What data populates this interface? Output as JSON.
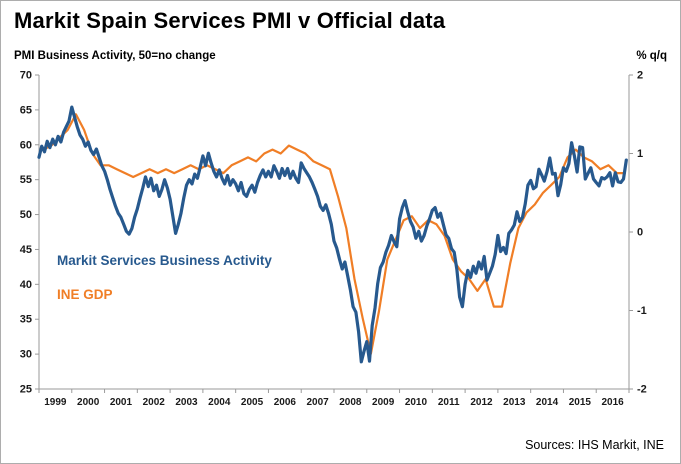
{
  "title": "Markit Spain Services PMI v Official data",
  "subtitle_left": "PMI Business Activity, 50=no change",
  "subtitle_right": "% q/q",
  "source": "Sources: IHS Markit, INE",
  "colors": {
    "pmi": "#27598E",
    "gdp": "#F07E26",
    "axis": "#9a9a9a",
    "text": "#000000"
  },
  "chart_data": {
    "type": "line",
    "title": "Markit Spain Services PMI v Official data",
    "xlabel": "",
    "ylabel_left": "PMI Business Activity, 50=no change",
    "ylabel_right": "% q/q",
    "grid": false,
    "legend_position": "inside-left",
    "left_axis": {
      "min": 25,
      "max": 70,
      "ticks": [
        25,
        30,
        35,
        40,
        45,
        50,
        55,
        60,
        65,
        70
      ]
    },
    "right_axis": {
      "min": -2,
      "max": 2,
      "ticks": [
        -2,
        -1,
        0,
        1,
        2
      ]
    },
    "x_axis": {
      "min": 1999,
      "max": 2017,
      "tick_labels": [
        "1999",
        "2000",
        "2001",
        "2002",
        "2003",
        "2004",
        "2005",
        "2006",
        "2007",
        "2008",
        "2009",
        "2010",
        "2011",
        "2012",
        "2013",
        "2014",
        "2015",
        "2016"
      ]
    },
    "series": [
      {
        "name": "Markit Services Business Activity",
        "axis": "left",
        "color": "#27598E",
        "width": 3.2,
        "freq": "monthly",
        "start": 1999.0,
        "step": 0.0833333,
        "values": [
          58.2,
          59.8,
          59.0,
          60.5,
          59.6,
          60.8,
          60.0,
          61.2,
          60.4,
          61.8,
          62.6,
          63.4,
          65.4,
          64.0,
          62.6,
          61.4,
          60.8,
          59.8,
          60.4,
          59.2,
          58.6,
          59.4,
          58.2,
          57.0,
          56.2,
          55.0,
          53.6,
          52.4,
          51.2,
          50.2,
          49.6,
          48.6,
          47.6,
          47.2,
          48.0,
          49.6,
          50.8,
          52.4,
          53.8,
          55.4,
          54.0,
          55.2,
          53.4,
          54.2,
          52.6,
          53.6,
          55.0,
          53.8,
          52.2,
          49.8,
          47.3,
          48.6,
          50.2,
          52.4,
          54.2,
          55.0,
          54.4,
          55.8,
          55.2,
          56.8,
          58.4,
          57.0,
          58.8,
          57.4,
          56.2,
          55.4,
          56.4,
          55.2,
          54.4,
          55.6,
          54.2,
          55.0,
          54.4,
          53.4,
          54.6,
          53.0,
          52.6,
          53.6,
          54.2,
          53.2,
          54.6,
          55.6,
          56.4,
          55.4,
          56.2,
          55.4,
          57.0,
          56.2,
          55.2,
          56.6,
          55.6,
          56.6,
          55.2,
          56.2,
          55.2,
          54.6,
          57.4,
          56.6,
          56.0,
          55.4,
          54.6,
          53.6,
          52.6,
          51.2,
          50.6,
          51.4,
          50.2,
          48.6,
          46.2,
          45.2,
          43.6,
          42.2,
          43.2,
          41.2,
          39.2,
          36.8,
          36.0,
          33.2,
          28.9,
          30.4,
          31.8,
          29.0,
          34.1,
          36.6,
          40.1,
          42.4,
          43.2,
          44.6,
          45.6,
          47.0,
          46.1,
          45.4,
          49.4,
          51.0,
          52.0,
          50.4,
          49.0,
          48.2,
          46.6,
          47.6,
          46.2,
          47.0,
          48.4,
          49.4,
          50.6,
          51.0,
          49.6,
          50.2,
          48.6,
          47.1,
          46.6,
          45.1,
          44.6,
          42.1,
          38.2,
          36.8,
          40.0,
          42.0,
          41.0,
          42.6,
          41.6,
          43.2,
          42.2,
          44.0,
          40.6,
          41.6,
          42.6,
          44.3,
          47.0,
          44.7,
          45.3,
          44.4,
          47.3,
          47.8,
          48.5,
          50.4,
          49.0,
          49.6,
          51.5,
          54.2,
          54.9,
          53.7,
          54.0,
          56.5,
          55.7,
          54.8,
          56.2,
          58.1,
          55.8,
          55.9,
          52.7,
          54.3,
          56.7,
          56.2,
          57.3,
          60.3,
          58.4,
          56.1,
          59.7,
          59.6,
          55.1,
          55.9,
          56.7,
          55.1,
          54.6,
          54.1,
          55.3,
          55.1,
          55.4,
          56.0,
          54.1,
          56.0,
          54.7,
          54.6,
          55.1,
          57.8
        ]
      },
      {
        "name": "INE GDP",
        "axis": "right",
        "color": "#F07E26",
        "width": 2.2,
        "freq": "quarterly",
        "start": 1999.125,
        "step": 0.25,
        "values": [
          1.05,
          1.1,
          1.2,
          1.3,
          1.5,
          1.3,
          1.0,
          0.85,
          0.85,
          0.8,
          0.75,
          0.7,
          0.75,
          0.8,
          0.75,
          0.8,
          0.75,
          0.8,
          0.85,
          0.8,
          0.85,
          0.8,
          0.75,
          0.85,
          0.9,
          0.95,
          0.9,
          1.0,
          1.05,
          1.0,
          1.1,
          1.05,
          1.0,
          0.9,
          0.85,
          0.8,
          0.45,
          0.05,
          -0.6,
          -1.1,
          -1.55,
          -1.0,
          -0.35,
          -0.1,
          0.15,
          0.2,
          0.05,
          0.15,
          0.1,
          -0.05,
          -0.35,
          -0.5,
          -0.6,
          -0.75,
          -0.6,
          -0.95,
          -0.95,
          -0.4,
          0.05,
          0.25,
          0.35,
          0.5,
          0.6,
          0.7,
          0.95,
          1.05,
          0.95,
          0.9,
          0.8,
          0.85,
          0.75,
          0.75
        ]
      }
    ]
  }
}
